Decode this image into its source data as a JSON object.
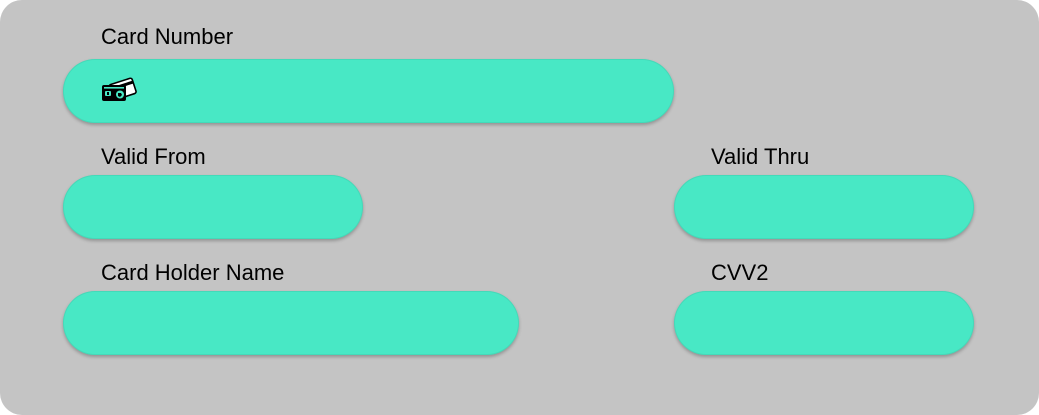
{
  "form": {
    "card_number": {
      "label": "Card Number",
      "value": "",
      "icon": "credit-card-icon"
    },
    "valid_from": {
      "label": "Valid From",
      "value": ""
    },
    "valid_thru": {
      "label": "Valid Thru",
      "value": ""
    },
    "card_holder_name": {
      "label": "Card Holder Name",
      "value": ""
    },
    "cvv2": {
      "label": "CVV2",
      "value": ""
    }
  },
  "colors": {
    "panel_background": "#c4c4c4",
    "field_background": "#48e8c5",
    "label_text": "#000000"
  }
}
